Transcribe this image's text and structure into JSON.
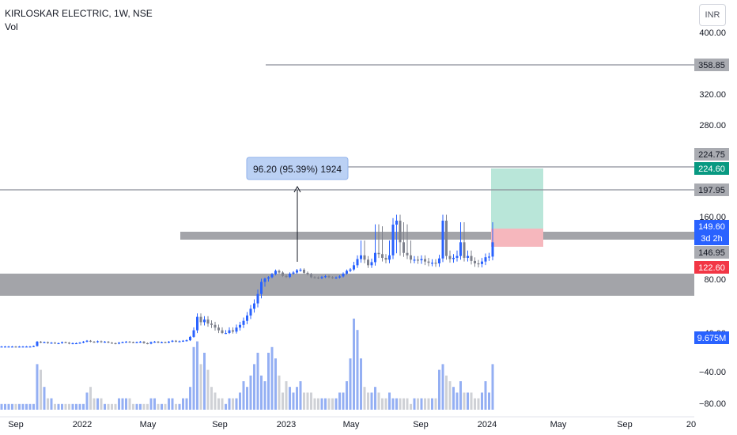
{
  "header": {
    "title": "KIRLOSKAR ELECTRIC, 1W, NSE",
    "indicator": "Vol",
    "currency": "INR"
  },
  "price_axis": {
    "ticks": [
      "400.00",
      "320.00",
      "280.00",
      "160.00",
      "80.00",
      "40.00",
      "−40.00",
      "−80.00"
    ],
    "labels": [
      "358.85",
      "224.75",
      "224.60",
      "197.95",
      "149.60",
      "3d 2h",
      "146.95",
      "122.60",
      "9.675M"
    ]
  },
  "time_axis": {
    "labels": [
      "Sep",
      "2022",
      "May",
      "Sep",
      "2023",
      "May",
      "Sep",
      "2024",
      "May",
      "Sep",
      "20"
    ]
  },
  "measure_label": "96.20 (95.39%) 1924",
  "colors": {
    "up": "#2962ff",
    "down": "#7e818c",
    "vol_up": "#94aff3",
    "vol_down": "#cfd1d6",
    "zone": "#a3a4a9",
    "target": "#b9e6d9",
    "stop": "#f6b7bd",
    "target_label": "#089981",
    "stop_label": "#f23645",
    "price_label": "#2962ff"
  },
  "chart_data": {
    "type": "candlestick",
    "symbol": "KIRLOSKAR ELECTRIC",
    "interval": "1W",
    "exchange": "NSE",
    "weekly_close": [
      12,
      12,
      12,
      12,
      11,
      12,
      12,
      12,
      12,
      13,
      22,
      20,
      21,
      19,
      20,
      19,
      19,
      21,
      20,
      18,
      19,
      19,
      20,
      22,
      24,
      22,
      21,
      23,
      21,
      22,
      20,
      19,
      18,
      20,
      21,
      22,
      21,
      20,
      21,
      22,
      19,
      18,
      21,
      22,
      20,
      21,
      20,
      22,
      24,
      22,
      23,
      24,
      25,
      32,
      42,
      52,
      48,
      50,
      47,
      46,
      44,
      42,
      40,
      40,
      42,
      41,
      44,
      46,
      49,
      53,
      58,
      62,
      69,
      78,
      82,
      87,
      98,
      110,
      104,
      92,
      88,
      100,
      104,
      112,
      114,
      103,
      98,
      87,
      86,
      84,
      88,
      91,
      87,
      85,
      86,
      90,
      100,
      110,
      115,
      126,
      136,
      142,
      135,
      126,
      131,
      146,
      144,
      138,
      135,
      142,
      152,
      156,
      148,
      146,
      142,
      135,
      135,
      134,
      136,
      132,
      130,
      130,
      129,
      137,
      156,
      141,
      136,
      138,
      141,
      148,
      138,
      141,
      133,
      129,
      128,
      132,
      139,
      140,
      148
    ],
    "levels": [
      358.85,
      197.95,
      224.75
    ],
    "support_zone": [
      70,
      100
    ],
    "resistance_zone": [
      140,
      150
    ],
    "measure": {
      "change": 96.2,
      "percent": 95.39,
      "bars": 1924
    },
    "position": {
      "entry": 146.95,
      "target": 224.6,
      "stop": 122.6
    },
    "last_price": 149.6,
    "volume_last": "9.675M",
    "volume_relative": [
      1,
      1,
      1,
      1,
      1,
      1,
      1,
      1,
      1,
      1,
      8,
      7,
      4,
      2,
      2,
      1,
      1,
      1,
      1,
      1,
      1,
      1,
      1,
      1,
      3,
      4,
      2,
      2,
      2,
      1,
      1,
      1,
      1,
      2,
      2,
      2,
      2,
      1,
      1,
      1,
      1,
      1,
      2,
      2,
      1,
      1,
      1,
      2,
      2,
      1,
      1,
      2,
      2,
      4,
      11,
      12,
      8,
      10,
      7,
      4,
      3,
      2,
      2,
      1,
      2,
      2,
      2,
      3,
      5,
      4,
      6,
      8,
      10,
      6,
      5,
      10,
      11,
      9,
      6,
      3,
      5,
      4,
      3,
      4,
      5,
      3,
      3,
      3,
      2,
      2,
      2,
      2,
      2,
      2,
      2,
      3,
      3,
      5,
      9,
      16,
      14,
      9,
      4,
      3,
      3,
      4,
      3,
      2,
      2,
      3,
      2,
      2,
      2,
      2,
      2,
      1,
      2,
      2,
      2,
      2,
      2,
      2,
      2,
      7,
      8,
      6,
      5,
      4,
      3,
      5,
      3,
      3,
      3,
      2,
      2,
      3,
      5,
      3,
      8
    ]
  }
}
